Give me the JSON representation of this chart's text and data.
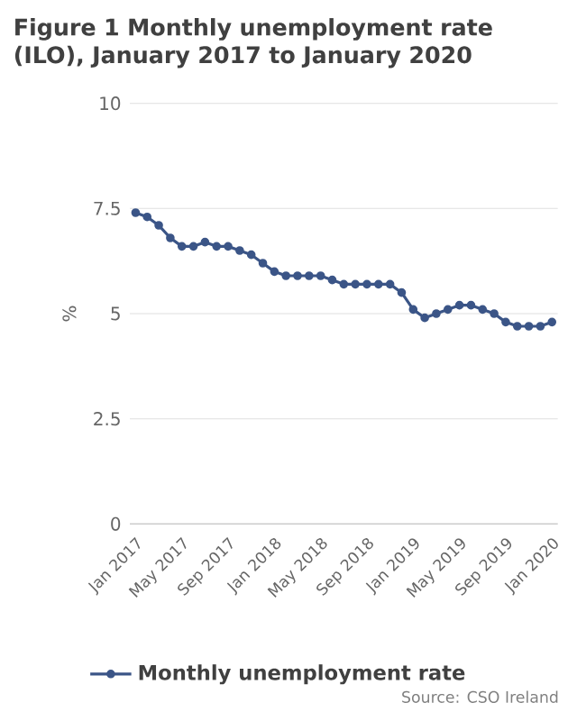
{
  "chart_data": {
    "type": "line",
    "title": "Figure 1 Monthly unemployment rate (ILO), January 2017 to January 2020",
    "ylabel": "%",
    "categories": [
      "Jan 2017",
      null,
      null,
      null,
      "May 2017",
      null,
      null,
      null,
      "Sep 2017",
      null,
      null,
      null,
      "Jan 2018",
      null,
      null,
      null,
      "May 2018",
      null,
      null,
      null,
      "Sep 2018",
      null,
      null,
      null,
      "Jan 2019",
      null,
      null,
      null,
      "May 2019",
      null,
      null,
      null,
      "Sep 2019",
      null,
      null,
      null,
      "Jan 2020"
    ],
    "series": [
      {
        "name": "Monthly unemployment rate",
        "color": "#3b5587",
        "values": [
          7.4,
          7.3,
          7.1,
          6.8,
          6.6,
          6.6,
          6.7,
          6.6,
          6.6,
          6.5,
          6.4,
          6.2,
          6.0,
          5.9,
          5.9,
          5.9,
          5.9,
          5.8,
          5.7,
          5.7,
          5.7,
          5.7,
          5.7,
          5.5,
          5.1,
          4.9,
          5.0,
          5.1,
          5.2,
          5.2,
          5.1,
          5.0,
          4.8,
          4.7,
          4.7,
          4.7,
          4.8
        ]
      }
    ],
    "ylim": [
      0,
      10
    ],
    "yticks": [
      0,
      2.5,
      5,
      7.5,
      10
    ],
    "grid": "y",
    "legend": "bottom",
    "marker": "circle",
    "line_style": "solid",
    "annotations": [
      "Source: CSO Ireland"
    ]
  }
}
